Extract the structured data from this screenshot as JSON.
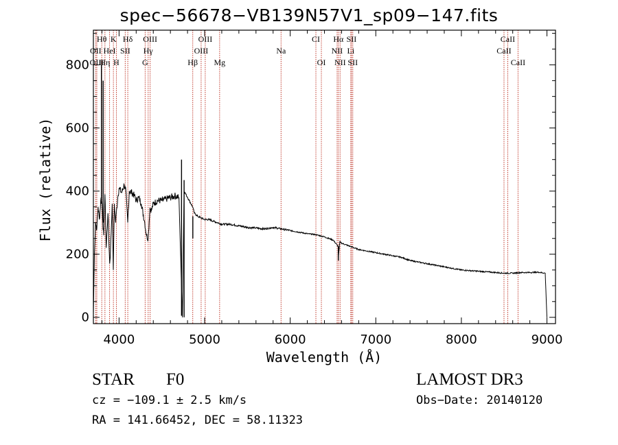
{
  "chart_data": {
    "type": "line",
    "title": "spec−56678−VB139N57V1_sp09−147.fits",
    "xlabel": "Wavelength (Å)",
    "ylabel": "Flux (relative)",
    "xlim": [
      3700,
      9100
    ],
    "ylim": [
      -20,
      910
    ],
    "xticks": [
      4000,
      5000,
      6000,
      7000,
      8000,
      9000
    ],
    "yticks": [
      0,
      200,
      400,
      600,
      800
    ],
    "spectrum": {
      "wavelength": [
        3700,
        3712,
        3725,
        3740,
        3755,
        3770,
        3790,
        3800,
        3810,
        3820,
        3835,
        3850,
        3870,
        3890,
        3900,
        3920,
        3933,
        3945,
        3960,
        3968,
        3985,
        4000,
        4030,
        4060,
        4080,
        4101,
        4120,
        4150,
        4180,
        4200,
        4230,
        4260,
        4300,
        4320,
        4340,
        4360,
        4380,
        4400,
        4450,
        4500,
        4550,
        4600,
        4650,
        4700,
        4740,
        4760,
        4800,
        4820,
        4860,
        4880,
        4920,
        4960,
        5000,
        5050,
        5100,
        5150,
        5200,
        5300,
        5400,
        5500,
        5600,
        5700,
        5800,
        5900,
        6000,
        6100,
        6200,
        6300,
        6400,
        6500,
        6560,
        6563,
        6580,
        6600,
        6700,
        6800,
        6900,
        7000,
        7100,
        7200,
        7300,
        7400,
        7500,
        7600,
        7700,
        7800,
        7900,
        8000,
        8100,
        8200,
        8300,
        8400,
        8500,
        8600,
        8700,
        8800,
        8900,
        8980,
        9000
      ],
      "flux": [
        10,
        200,
        300,
        280,
        350,
        310,
        380,
        360,
        300,
        260,
        390,
        220,
        330,
        170,
        210,
        360,
        150,
        360,
        300,
        330,
        380,
        410,
        395,
        420,
        400,
        300,
        400,
        395,
        385,
        370,
        380,
        360,
        300,
        260,
        250,
        345,
        340,
        360,
        370,
        370,
        375,
        380,
        385,
        380,
        0,
        400,
        380,
        370,
        350,
        330,
        320,
        315,
        310,
        310,
        305,
        300,
        295,
        295,
        290,
        285,
        283,
        280,
        285,
        280,
        275,
        270,
        265,
        262,
        255,
        245,
        225,
        190,
        240,
        235,
        225,
        215,
        210,
        205,
        200,
        195,
        190,
        180,
        175,
        170,
        165,
        160,
        155,
        150,
        148,
        146,
        144,
        142,
        140,
        140,
        142,
        142,
        143,
        140,
        0
      ]
    },
    "spikes": [
      {
        "wavelength": 3794,
        "top": 800,
        "bottom": 360
      },
      {
        "wavelength": 3814,
        "top": 750,
        "bottom": 300
      },
      {
        "wavelength": 4730,
        "top": 500,
        "bottom": 5
      },
      {
        "wavelength": 4760,
        "top": 435,
        "bottom": 0
      },
      {
        "wavelength": 4862,
        "top": 320,
        "bottom": 250
      },
      {
        "wavelength": 6563,
        "top": 225,
        "bottom": 180
      }
    ],
    "emission_lines": [
      {
        "label": "Hθ",
        "wavelength": 3798,
        "row": 1
      },
      {
        "label": "OII",
        "wavelength": 3727,
        "row": 2
      },
      {
        "label": "OIII",
        "wavelength": 3740,
        "row": 3
      },
      {
        "label": "K",
        "wavelength": 3934,
        "row": 1
      },
      {
        "label": "HeI",
        "wavelength": 3889,
        "row": 2
      },
      {
        "label": "Hη",
        "wavelength": 3835,
        "row": 3
      },
      {
        "label": "SII",
        "wavelength": 4072,
        "row": 2
      },
      {
        "label": "H",
        "wavelength": 3969,
        "row": 3
      },
      {
        "label": "Hδ",
        "wavelength": 4102,
        "row": 1
      },
      {
        "label": "OIII",
        "wavelength": 4363,
        "row": 1
      },
      {
        "label": "Hγ",
        "wavelength": 4340,
        "row": 2
      },
      {
        "label": "G",
        "wavelength": 4305,
        "row": 3
      },
      {
        "label": "Hβ",
        "wavelength": 4861,
        "row": 3
      },
      {
        "label": "OIII",
        "wavelength": 5007,
        "row": 1
      },
      {
        "label": "OIII",
        "wavelength": 4959,
        "row": 2
      },
      {
        "label": "Mg",
        "wavelength": 5175,
        "row": 3
      },
      {
        "label": "Na",
        "wavelength": 5893,
        "row": 2
      },
      {
        "label": "CI",
        "wavelength": 6300,
        "row": 1
      },
      {
        "label": "OI",
        "wavelength": 6364,
        "row": 3
      },
      {
        "label": "Hα",
        "wavelength": 6563,
        "row": 1
      },
      {
        "label": "SII",
        "wavelength": 6716,
        "row": 1
      },
      {
        "label": "NII",
        "wavelength": 6548,
        "row": 2
      },
      {
        "label": "Li",
        "wavelength": 6708,
        "row": 2
      },
      {
        "label": "NII",
        "wavelength": 6583,
        "row": 3
      },
      {
        "label": "SII",
        "wavelength": 6731,
        "row": 3
      },
      {
        "label": "CaII",
        "wavelength": 8542,
        "row": 1
      },
      {
        "label": "CaII",
        "wavelength": 8498,
        "row": 2
      },
      {
        "label": "CaII",
        "wavelength": 8662,
        "row": 3
      }
    ]
  },
  "info": {
    "object_class": "STAR",
    "subclass": "F0",
    "survey": "LAMOST DR3",
    "redshift": "cz = −109.1 ± 2.5 km/s",
    "obs_date": "Obs−Date: 20140120",
    "coords": "RA = 141.66452, DEC =  58.11323"
  },
  "colors": {
    "spectrum": "#000000",
    "emission_line": "#c0392b",
    "axes": "#000000"
  }
}
